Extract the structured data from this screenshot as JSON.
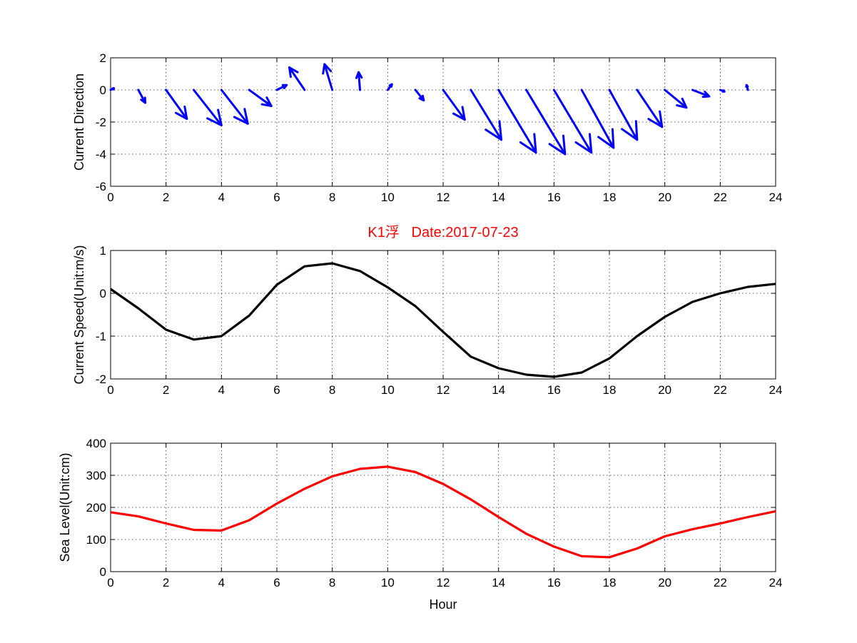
{
  "figure": {
    "title": "K1浮   Date:2017-07-23",
    "title_color": "#ff0000"
  },
  "chart_data": [
    {
      "type": "quiver",
      "ylabel": "Current Direction",
      "xlim": [
        0,
        24
      ],
      "ylim": [
        -6,
        2
      ],
      "xticks": [
        "0",
        "2",
        "4",
        "6",
        "8",
        "10",
        "12",
        "14",
        "16",
        "18",
        "20",
        "22",
        "24"
      ],
      "yticks": [
        "-6",
        "-4",
        "-2",
        "0",
        "2"
      ],
      "grid": true,
      "color": "#0000ff",
      "x": [
        0,
        1,
        2,
        3,
        4,
        5,
        6,
        7,
        8,
        9,
        10,
        11,
        12,
        13,
        14,
        15,
        16,
        17,
        18,
        19,
        20,
        21,
        22,
        23
      ],
      "u": [
        0.12,
        0.25,
        0.75,
        1.0,
        0.95,
        0.8,
        0.35,
        -0.55,
        -0.28,
        -0.05,
        0.15,
        0.3,
        0.78,
        1.1,
        1.35,
        1.4,
        1.35,
        1.15,
        1.0,
        0.9,
        0.78,
        0.6,
        0.15,
        -0.05
      ],
      "v": [
        0.1,
        -0.8,
        -1.8,
        -2.2,
        -2.1,
        -1.0,
        0.3,
        1.4,
        1.6,
        1.1,
        0.35,
        -0.65,
        -1.85,
        -3.1,
        -3.9,
        -4.0,
        -3.9,
        -3.6,
        -3.1,
        -2.3,
        -1.1,
        -0.4,
        -0.1,
        0.3
      ]
    },
    {
      "type": "line",
      "ylabel": "Current Speed(Unit:m/s)",
      "xlim": [
        0,
        24
      ],
      "ylim": [
        -2,
        1
      ],
      "xticks": [
        "0",
        "2",
        "4",
        "6",
        "8",
        "10",
        "12",
        "14",
        "16",
        "18",
        "20",
        "22",
        "24"
      ],
      "yticks": [
        "-2",
        "-1",
        "0",
        "1"
      ],
      "grid": true,
      "color": "#000000",
      "x": [
        0,
        1,
        2,
        3,
        4,
        5,
        6,
        7,
        8,
        9,
        10,
        11,
        12,
        13,
        14,
        15,
        16,
        17,
        18,
        19,
        20,
        21,
        22,
        23,
        24
      ],
      "y": [
        0.1,
        -0.35,
        -0.85,
        -1.08,
        -1.0,
        -0.52,
        0.2,
        0.63,
        0.7,
        0.52,
        0.14,
        -0.3,
        -0.9,
        -1.48,
        -1.75,
        -1.9,
        -1.95,
        -1.85,
        -1.52,
        -1.0,
        -0.55,
        -0.2,
        0.0,
        0.15,
        0.22
      ]
    },
    {
      "type": "line",
      "ylabel": "Sea Level(Unit:cm)",
      "xlabel": "Hour",
      "xlim": [
        0,
        24
      ],
      "ylim": [
        0,
        400
      ],
      "xticks": [
        "0",
        "2",
        "4",
        "6",
        "8",
        "10",
        "12",
        "14",
        "16",
        "18",
        "20",
        "22",
        "24"
      ],
      "yticks": [
        "0",
        "100",
        "200",
        "300",
        "400"
      ],
      "grid": true,
      "color": "#ff0000",
      "x": [
        0,
        1,
        2,
        3,
        4,
        5,
        6,
        7,
        8,
        9,
        10,
        11,
        12,
        13,
        14,
        15,
        16,
        17,
        18,
        19,
        20,
        21,
        22,
        23,
        24
      ],
      "y": [
        185,
        172,
        150,
        130,
        128,
        160,
        212,
        258,
        297,
        320,
        327,
        310,
        273,
        225,
        170,
        118,
        78,
        48,
        45,
        72,
        110,
        132,
        150,
        170,
        188
      ]
    }
  ]
}
